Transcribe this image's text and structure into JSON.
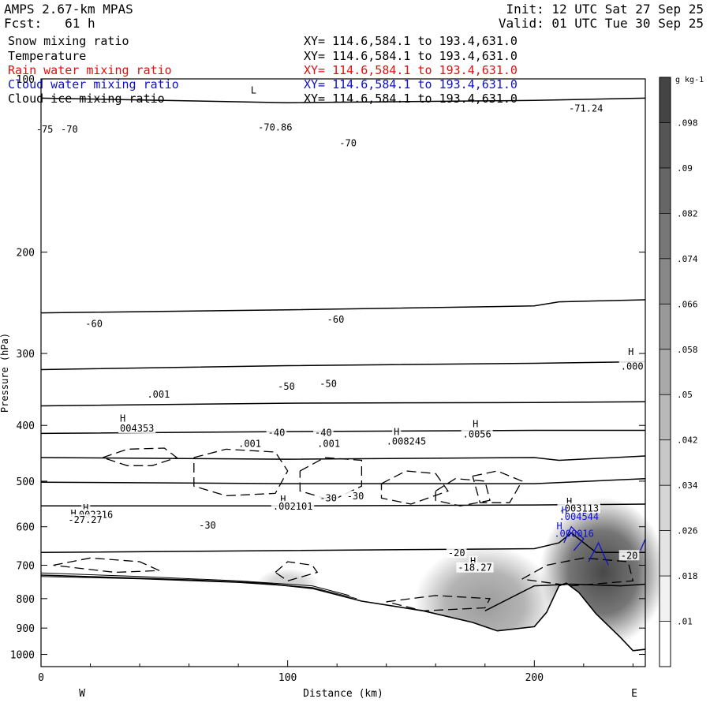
{
  "header": {
    "model": "AMPS 2.67-km MPAS",
    "forecast": "Fcst:   61 h",
    "init": "Init: 12 UTC Sat 27 Sep 25",
    "valid": "Valid: 01 UTC Tue 30 Sep 25"
  },
  "legend": [
    {
      "label": "Snow mixing ratio",
      "xy": "XY= 114.6,584.1 to 193.4,631.0",
      "color": "#000000"
    },
    {
      "label": "Temperature",
      "xy": "XY= 114.6,584.1 to 193.4,631.0",
      "color": "#000000"
    },
    {
      "label": "Rain water mixing ratio",
      "xy": "XY= 114.6,584.1 to 193.4,631.0",
      "color": "#e01010"
    },
    {
      "label": "Cloud water mixing ratio",
      "xy": "XY= 114.6,584.1 to 193.4,631.0",
      "color": "#1010d0"
    },
    {
      "label": "Cloud ice mixing ratio",
      "xy": "XY= 114.6,584.1 to 193.4,631.0",
      "color": "#000000"
    }
  ],
  "chart_data": {
    "type": "contour",
    "xlabel": "Distance (km)",
    "ylabel": "Pressure (hPa)",
    "xlim": [
      0,
      245
    ],
    "ylim": [
      1050,
      100
    ],
    "y_scale": "log",
    "x_ticks": [
      0,
      100,
      200
    ],
    "y_ticks": [
      100,
      200,
      300,
      400,
      500,
      600,
      700,
      800,
      900,
      1000
    ],
    "x_end_labels": {
      "left": "W",
      "right": "E"
    },
    "colorbar": {
      "unit": "g kg-1",
      "levels": [
        ".01",
        ".018",
        ".026",
        ".034",
        ".042",
        ".05",
        ".058",
        ".066",
        ".074",
        ".082",
        ".09",
        ".098"
      ],
      "colors": [
        "#ffffff",
        "#f2f2f2",
        "#e4e4e4",
        "#d6d6d6",
        "#c8c8c8",
        "#b9b9b9",
        "#a9a9a9",
        "#999999",
        "#888888",
        "#777777",
        "#666666",
        "#555555",
        "#444444"
      ]
    },
    "temperature_contours": [
      {
        "label": "-70",
        "points": [
          [
            0,
            108
          ],
          [
            100,
            110
          ],
          [
            200,
            109
          ],
          [
            245,
            108
          ]
        ]
      },
      {
        "label": "",
        "points": [
          [
            0,
            255
          ],
          [
            100,
            252
          ],
          [
            200,
            248
          ],
          [
            210,
            244
          ],
          [
            245,
            242
          ]
        ]
      },
      {
        "label": "-60",
        "points": [
          [
            0,
            320
          ],
          [
            100,
            315
          ],
          [
            200,
            312
          ],
          [
            245,
            310
          ]
        ]
      },
      {
        "label": "",
        "points": [
          [
            0,
            370
          ],
          [
            100,
            366
          ],
          [
            200,
            365
          ],
          [
            245,
            364
          ]
        ]
      },
      {
        "label": "-50",
        "points": [
          [
            0,
            413
          ],
          [
            100,
            410
          ],
          [
            200,
            408
          ],
          [
            245,
            408
          ]
        ]
      },
      {
        "label": "",
        "points": [
          [
            0,
            455
          ],
          [
            100,
            458
          ],
          [
            200,
            455
          ],
          [
            210,
            460
          ],
          [
            245,
            452
          ]
        ]
      },
      {
        "label": "-40",
        "points": [
          [
            0,
            502
          ],
          [
            100,
            505
          ],
          [
            200,
            505
          ],
          [
            245,
            495
          ]
        ]
      },
      {
        "label": "",
        "points": [
          [
            0,
            552
          ],
          [
            100,
            552
          ],
          [
            200,
            550
          ],
          [
            245,
            548
          ]
        ]
      },
      {
        "label": "-30",
        "points": [
          [
            0,
            665
          ],
          [
            100,
            660
          ],
          [
            200,
            655
          ],
          [
            210,
            640
          ],
          [
            215,
            615
          ],
          [
            225,
            665
          ],
          [
            245,
            665
          ]
        ]
      },
      {
        "label": "-20",
        "points": [
          [
            180,
            840
          ],
          [
            200,
            760
          ],
          [
            215,
            755
          ],
          [
            235,
            760
          ],
          [
            245,
            755
          ]
        ]
      }
    ],
    "terrain": {
      "points": [
        [
          0,
          728
        ],
        [
          30,
          735
        ],
        [
          60,
          742
        ],
        [
          90,
          752
        ],
        [
          110,
          768
        ],
        [
          130,
          808
        ],
        [
          155,
          840
        ],
        [
          175,
          880
        ],
        [
          185,
          910
        ],
        [
          200,
          895
        ],
        [
          205,
          845
        ],
        [
          210,
          760
        ],
        [
          213,
          752
        ],
        [
          218,
          780
        ],
        [
          225,
          850
        ],
        [
          235,
          935
        ],
        [
          240,
          985
        ],
        [
          245,
          980
        ]
      ]
    },
    "snow_shading": [
      {
        "center": [
          180,
          818
        ],
        "value": 0.06
      },
      {
        "center": [
          228,
          720
        ],
        "value": 0.11
      },
      {
        "center": [
          100,
          755
        ],
        "value": 0.03
      }
    ],
    "labels": [
      {
        "text": "L",
        "pos": [
          85,
          106
        ]
      },
      {
        "text": "-70.86",
        "pos": [
          88,
          123
        ]
      },
      {
        "text": "-71.24",
        "pos": [
          214,
          114
        ]
      },
      {
        "text": "-70",
        "pos": [
          121,
          131
        ]
      },
      {
        "text": "-75",
        "pos": [
          -2,
          124
        ]
      },
      {
        "text": "-70",
        "pos": [
          8,
          124
        ]
      },
      {
        "text": "-60",
        "pos": [
          18,
          270
        ]
      },
      {
        "text": "-60",
        "pos": [
          116,
          265
        ]
      },
      {
        "text": "H",
        "pos": [
          238,
          302
        ]
      },
      {
        "text": ".000",
        "pos": [
          235,
          320
        ]
      },
      {
        "text": "-50",
        "pos": [
          96,
          347
        ]
      },
      {
        "text": "-50",
        "pos": [
          113,
          343
        ]
      },
      {
        "text": "-40",
        "pos": [
          92,
          417
        ]
      },
      {
        "text": "-40",
        "pos": [
          111,
          417
        ]
      },
      {
        "text": ".001",
        "pos": [
          43,
          358
        ]
      },
      {
        "text": "H",
        "pos": [
          32,
          394
        ]
      },
      {
        "text": "004353",
        "pos": [
          32,
          410
        ]
      },
      {
        "text": ".001",
        "pos": [
          80,
          436
        ]
      },
      {
        "text": ".001",
        "pos": [
          112,
          436
        ]
      },
      {
        "text": "H",
        "pos": [
          143,
          416
        ]
      },
      {
        "text": ".008245",
        "pos": [
          140,
          432
        ]
      },
      {
        "text": "H",
        "pos": [
          175,
          403
        ]
      },
      {
        "text": ".0056",
        "pos": [
          171,
          420
        ]
      },
      {
        "text": "-30",
        "pos": [
          113,
          542
        ]
      },
      {
        "text": "-30",
        "pos": [
          124,
          538
        ]
      },
      {
        "text": "H",
        "pos": [
          97,
          545
        ]
      },
      {
        "text": ".002101",
        "pos": [
          94,
          560
        ]
      },
      {
        "text": "H",
        "pos": [
          17,
          564
        ]
      },
      {
        "text": ".002316",
        "pos": [
          13,
          579
        ]
      },
      {
        "text": "H",
        "pos": [
          12,
          576
        ]
      },
      {
        "text": "-27.27",
        "pos": [
          11,
          591
        ]
      },
      {
        "text": "-30",
        "pos": [
          64,
          604
        ]
      },
      {
        "text": "H",
        "pos": [
          213,
          550
        ]
      },
      {
        "text": ".003113",
        "pos": [
          210,
          565
        ]
      },
      {
        "text": "-20",
        "pos": [
          165,
          675
        ]
      },
      {
        "text": "H",
        "pos": [
          174,
          698
        ]
      },
      {
        "text": "-18.27",
        "pos": [
          169,
          716
        ]
      },
      {
        "text": "-20",
        "pos": [
          235,
          682
        ]
      }
    ],
    "cloud_water_labels": [
      {
        "text": "H",
        "pos": [
          211,
          569
        ]
      },
      {
        "text": ".004544",
        "pos": [
          210,
          584
        ]
      },
      {
        "text": "H",
        "pos": [
          209,
          606
        ]
      },
      {
        "text": ".000016",
        "pos": [
          208,
          625
        ]
      }
    ]
  }
}
